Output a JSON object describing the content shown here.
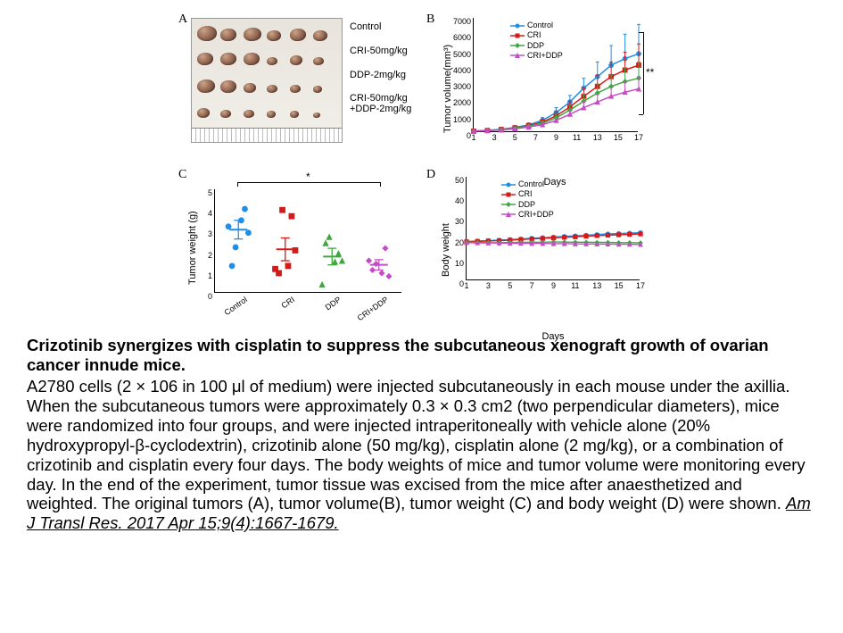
{
  "colors": {
    "control": "#1f8ee6",
    "cri": "#d61a1a",
    "ddp": "#3fa740",
    "cri_ddp": "#c44dc4",
    "control_light": "#4aa4ef",
    "cri_light": "#e05252",
    "ddp_light": "#66c267",
    "cri_ddp_light": "#d480d4",
    "axis": "#000000"
  },
  "panelA": {
    "label": "A",
    "groups": [
      "Control",
      "CRI-50mg/kg",
      "DDP-2mg/kg",
      "CRI-50mg/kg\n+DDP-2mg/kg"
    ],
    "rows": [
      [
        22,
        18,
        20,
        16,
        18,
        16
      ],
      [
        18,
        18,
        18,
        12,
        14,
        12
      ],
      [
        20,
        18,
        14,
        12,
        12,
        10
      ],
      [
        14,
        12,
        12,
        10,
        10,
        8
      ]
    ]
  },
  "panelB": {
    "label": "B",
    "yTitle": "Tumor volume(mm³)",
    "xTitle": "Days",
    "yTicks": [
      0,
      1000,
      2000,
      3000,
      4000,
      5000,
      6000,
      7000
    ],
    "xTicks": [
      1,
      3,
      5,
      7,
      9,
      11,
      13,
      15,
      17
    ],
    "significance": "**",
    "legend": [
      {
        "label": "Control",
        "color": "#1f8ee6",
        "marker": "circle"
      },
      {
        "label": "CRI",
        "color": "#d61a1a",
        "marker": "square"
      },
      {
        "label": "DDP",
        "color": "#3fa740",
        "marker": "diamond"
      },
      {
        "label": "CRI+DDP",
        "color": "#c44dc4",
        "marker": "triangle"
      }
    ],
    "series": {
      "control": {
        "y": [
          60,
          110,
          180,
          290,
          450,
          720,
          1200,
          1850,
          2700,
          3400,
          4100,
          4500,
          4800
        ],
        "err": [
          0,
          0,
          0,
          0,
          100,
          180,
          300,
          400,
          600,
          900,
          1200,
          1500,
          1800
        ]
      },
      "cri": {
        "y": [
          60,
          100,
          160,
          260,
          400,
          620,
          1000,
          1550,
          2200,
          2800,
          3400,
          3800,
          4100
        ],
        "err": [
          0,
          0,
          0,
          0,
          80,
          150,
          250,
          350,
          500,
          700,
          900,
          1100,
          1300
        ]
      },
      "ddp": {
        "y": [
          60,
          100,
          150,
          240,
          360,
          550,
          880,
          1350,
          1900,
          2400,
          2800,
          3100,
          3300
        ],
        "err": [
          0,
          0,
          0,
          0,
          70,
          130,
          220,
          300,
          420,
          550,
          700,
          850,
          1000
        ]
      },
      "cri_ddp": {
        "y": [
          60,
          90,
          130,
          200,
          310,
          460,
          720,
          1100,
          1500,
          1850,
          2200,
          2450,
          2650
        ],
        "err": [
          0,
          0,
          0,
          0,
          60,
          110,
          180,
          250,
          350,
          450,
          550,
          650,
          750
        ]
      }
    }
  },
  "panelC": {
    "label": "C",
    "yTitle": "Tumor weight (g)",
    "yTicks": [
      0,
      1,
      2,
      3,
      4,
      5
    ],
    "categories": [
      "Control",
      "CRI",
      "DDP",
      "CRI+DDP"
    ],
    "significance": "*",
    "means": [
      3.05,
      2.1,
      1.75,
      1.35
    ],
    "sems": [
      0.45,
      0.55,
      0.4,
      0.25
    ],
    "points": {
      "control": [
        2.2,
        4.05,
        3.2,
        3.5,
        1.3,
        2.9
      ],
      "cri": [
        4.0,
        3.7,
        1.15,
        1.3,
        0.95,
        2.05
      ],
      "ddp": [
        2.7,
        1.9,
        0.4,
        1.5,
        2.4,
        1.55
      ],
      "cri_ddp": [
        1.4,
        2.15,
        1.55,
        0.95,
        1.1,
        0.8
      ]
    },
    "markers": {
      "control": "circle",
      "cri": "square",
      "ddp": "triangle",
      "cri_ddp": "diamond"
    }
  },
  "panelD": {
    "label": "D",
    "yTitle": "Body weight",
    "xTitle": "Days",
    "yTicks": [
      0,
      10,
      20,
      30,
      40,
      50
    ],
    "xTicks": [
      1,
      3,
      5,
      7,
      9,
      11,
      13,
      15,
      17
    ],
    "legend": [
      {
        "label": "Control",
        "color": "#1f8ee6",
        "marker": "circle"
      },
      {
        "label": "CRI",
        "color": "#d61a1a",
        "marker": "square"
      },
      {
        "label": "DDP",
        "color": "#3fa740",
        "marker": "diamond"
      },
      {
        "label": "CRI+DDP",
        "color": "#c44dc4",
        "marker": "triangle"
      }
    ],
    "series": {
      "control": [
        18.8,
        19.0,
        19.2,
        19.4,
        19.7,
        20.0,
        20.3,
        20.6,
        20.9,
        21.2,
        21.5,
        21.8,
        22.1,
        22.4,
        22.6,
        22.8,
        23.0
      ],
      "cri": [
        18.6,
        18.8,
        19.0,
        19.2,
        19.4,
        19.7,
        20.0,
        20.2,
        20.5,
        20.8,
        21.0,
        21.3,
        21.6,
        21.8,
        22.0,
        22.2,
        22.4
      ],
      "ddp": [
        18.4,
        18.3,
        18.2,
        18.2,
        18.3,
        18.3,
        18.4,
        18.4,
        18.5,
        18.5,
        18.4,
        18.4,
        18.3,
        18.3,
        18.2,
        18.2,
        18.1
      ],
      "cri_ddp": [
        18.2,
        18.1,
        18.0,
        18.0,
        17.9,
        17.9,
        17.8,
        17.8,
        17.7,
        17.7,
        17.6,
        17.6,
        17.5,
        17.5,
        17.4,
        17.4,
        17.3
      ]
    }
  },
  "caption": {
    "title": "Crizotinib synergizes with cisplatin to suppress the subcutaneous xenograft growth of ovarian cancer innude mice.",
    "body": "A2780 cells (2 × 106 in 100 μl of medium) were injected subcutaneously in each mouse under the axillia. When the subcutaneous tumors were approximately 0.3 × 0.3 cm2 (two perpendicular diameters), mice were randomized into four groups, and were injected intraperitoneally with vehicle alone (20% hydroxypropyl-β-cyclodextrin), crizotinib alone (50 mg/kg), cisplatin alone (2 mg/kg), or a combination of crizotinib and cisplatin every four days. The body weights of mice and tumor volume were monitoring every day. In the end of the experiment, tumor tissue was excised from the mice after anaesthetized and weighted. The original tumors (A), tumor volume(B), tumor weight (C) and body weight (D) were shown. ",
    "citation": "Am J Transl Res. 2017 Apr 15;9(4):1667-1679."
  }
}
